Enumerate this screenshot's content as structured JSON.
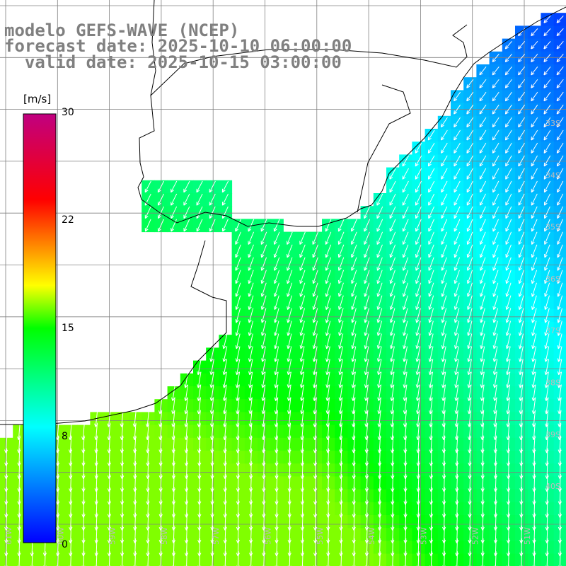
{
  "titles": {
    "model": "modelo GEFS-WAVE (NCEP)",
    "forecast": "forecast date: 2025-10-10 06:00:00",
    "valid": "  valid date: 2025-10-15 03:00:00"
  },
  "colorbar": {
    "unit": "[m/s]",
    "ticks": [
      "30",
      "22",
      "15",
      "8",
      "0"
    ]
  },
  "grid": {
    "lat_labels": [
      "33S",
      "34S",
      "35S",
      "36S",
      "37S",
      "38S",
      "39S",
      "40S"
    ],
    "lon_labels": [
      "61W",
      "60W",
      "59W",
      "58W",
      "57W",
      "56W",
      "55W",
      "54W",
      "53W",
      "52W",
      "51W"
    ]
  },
  "colors": {
    "land": "#ffffff",
    "coastline": "#000000",
    "grid": "#808080",
    "arrows": "#ffffff",
    "colorbar_stops": [
      "#0000ff",
      "#00ffff",
      "#00ff00",
      "#ffff00",
      "#ff0000",
      "#c00080"
    ]
  }
}
